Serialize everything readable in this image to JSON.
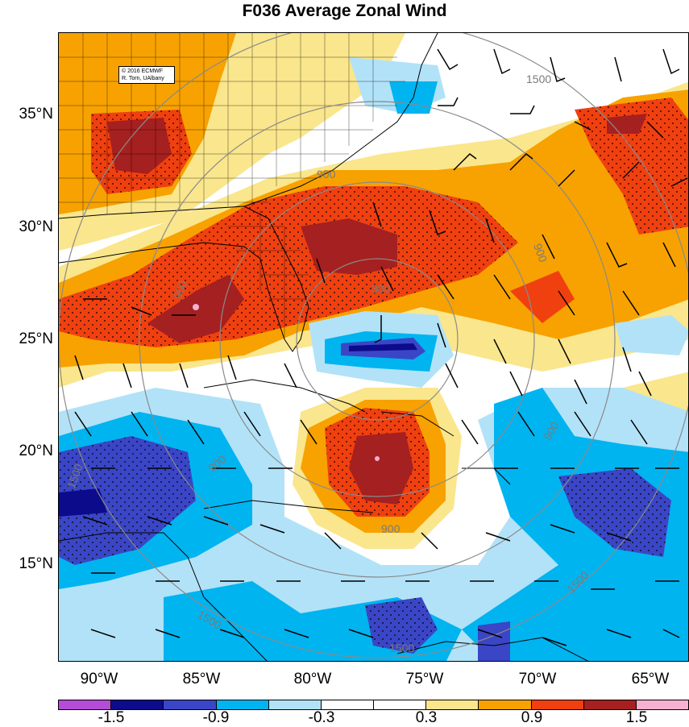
{
  "title": "F036 Average Zonal Wind",
  "credit": {
    "line1": "© 2016 ECMWF",
    "line2": "R. Torn, UAlbany"
  },
  "lat_labels": [
    "35°N",
    "30°N",
    "25°N",
    "20°N",
    "15°N"
  ],
  "lon_labels": [
    "90°W",
    "85°W",
    "80°W",
    "75°W",
    "70°W",
    "65°W"
  ],
  "contour_labels": [
    "300",
    "900",
    "900",
    "900",
    "900",
    "900",
    "900",
    "1500",
    "1500",
    "1500",
    "1500",
    "1500"
  ],
  "colorbar": {
    "colors": [
      "#b44cd8",
      "#0b0b8c",
      "#3a46c6",
      "#00b4f0",
      "#b2e2f8",
      "#ffffff",
      "#ffffff",
      "#fae68c",
      "#f7a200",
      "#f04010",
      "#a52020",
      "#f7b0d0"
    ],
    "labels": [
      "-1.5",
      "-0.9",
      "-0.3",
      "0.3",
      "0.9",
      "1.5"
    ]
  },
  "fill_colors": {
    "light_orange": "#fae68c",
    "orange": "#f7a200",
    "red_orange": "#f04010",
    "dark_red": "#a52020",
    "pink": "#f7b0d0",
    "light_blue": "#b2e2f8",
    "blue": "#00b4f0",
    "mid_blue": "#3a46c6",
    "navy": "#0b0b8c"
  }
}
